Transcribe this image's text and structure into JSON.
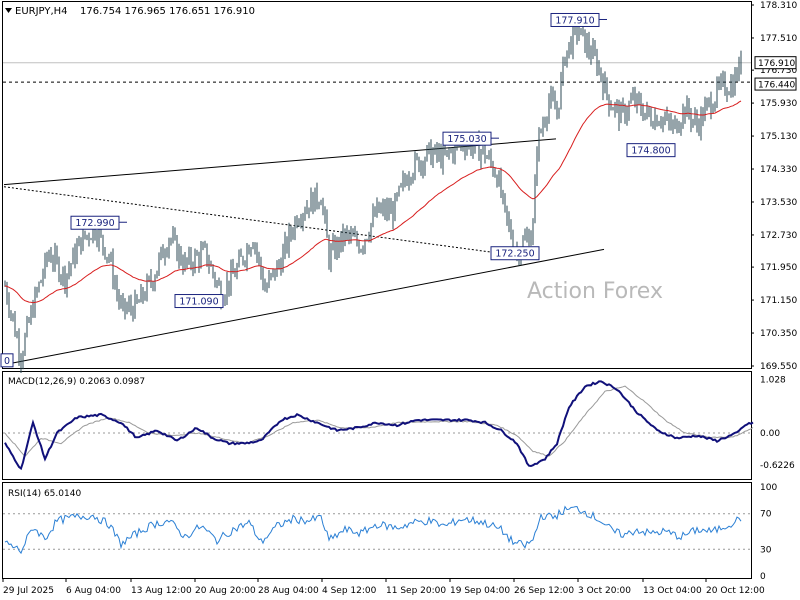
{
  "header": {
    "symbol": "EURJPY,H4",
    "ohlc": "176.754 176.965 176.651 176.910"
  },
  "watermark": "Action Forex",
  "chart_data": {
    "type": "candlestick",
    "y_axis": {
      "range": [
        169.55,
        178.31
      ],
      "ticks": [
        "178.310",
        "177.510",
        "176.730",
        "175.930",
        "175.130",
        "174.330",
        "173.530",
        "172.730",
        "171.950",
        "171.150",
        "170.350",
        "169.550"
      ]
    },
    "last_price": "176.910",
    "level_line": "176.440",
    "price_labels": [
      {
        "text": "177.910",
        "price": 177.91
      },
      {
        "text": "175.030",
        "price": 175.03
      },
      {
        "text": "172.990",
        "price": 172.99
      },
      {
        "text": "172.250",
        "price": 172.25
      },
      {
        "text": "171.090",
        "price": 171.09
      },
      {
        "text": "174.800",
        "price": 174.8
      },
      {
        "text": "0",
        "price": 169.7
      }
    ],
    "x_labels": [
      "29 Jul 2025",
      "6 Aug 04:00",
      "13 Aug 12:00",
      "20 Aug 20:00",
      "28 Aug 04:00",
      "4 Sep 12:00",
      "11 Sep 20:00",
      "19 Sep 04:00",
      "26 Sep 12:00",
      "3 Oct 20:00",
      "13 Oct 04:00",
      "20 Oct 12:00"
    ],
    "price_anchors": [
      [
        0,
        171.5
      ],
      [
        8,
        169.8
      ],
      [
        14,
        171.0
      ],
      [
        22,
        172.3
      ],
      [
        30,
        171.7
      ],
      [
        38,
        172.6
      ],
      [
        45,
        172.9
      ],
      [
        52,
        172.2
      ],
      [
        58,
        170.9
      ],
      [
        66,
        171.0
      ],
      [
        74,
        171.7
      ],
      [
        82,
        172.7
      ],
      [
        90,
        172.0
      ],
      [
        100,
        172.3
      ],
      [
        108,
        171.3
      ],
      [
        116,
        171.9
      ],
      [
        124,
        172.7
      ],
      [
        130,
        171.4
      ],
      [
        138,
        172.1
      ],
      [
        146,
        173.2
      ],
      [
        152,
        173.5
      ],
      [
        158,
        173.7
      ],
      [
        162,
        172.2
      ],
      [
        170,
        172.7
      ],
      [
        178,
        172.5
      ],
      [
        186,
        173.3
      ],
      [
        194,
        173.3
      ],
      [
        202,
        174.3
      ],
      [
        212,
        174.7
      ],
      [
        220,
        174.6
      ],
      [
        228,
        175.0
      ],
      [
        234,
        174.9
      ],
      [
        240,
        174.7
      ],
      [
        246,
        174.2
      ],
      [
        250,
        173.2
      ],
      [
        256,
        172.3
      ],
      [
        260,
        172.6
      ],
      [
        264,
        172.9
      ],
      [
        266,
        174.9
      ],
      [
        272,
        176.0
      ],
      [
        276,
        175.7
      ],
      [
        280,
        177.1
      ],
      [
        286,
        177.7
      ],
      [
        290,
        177.4
      ],
      [
        296,
        176.9
      ],
      [
        302,
        176.0
      ],
      [
        308,
        175.6
      ],
      [
        314,
        176.0
      ],
      [
        322,
        175.6
      ],
      [
        328,
        175.6
      ],
      [
        334,
        175.3
      ],
      [
        340,
        175.8
      ],
      [
        346,
        175.4
      ],
      [
        352,
        175.9
      ],
      [
        358,
        176.3
      ],
      [
        364,
        176.4
      ],
      [
        368,
        176.91
      ]
    ],
    "indicators": {
      "macd": {
        "label": "MACD(12,26,9) 0.2063 0.0987",
        "ticks": [
          "1.028",
          "0.00",
          "-0.6226"
        ],
        "range": [
          -0.85,
          1.1
        ],
        "macd_anchors": [
          [
            0,
            -0.2
          ],
          [
            8,
            -0.7
          ],
          [
            14,
            0.2
          ],
          [
            20,
            -0.5
          ],
          [
            26,
            0.0
          ],
          [
            36,
            0.3
          ],
          [
            48,
            0.35
          ],
          [
            58,
            0.2
          ],
          [
            66,
            -0.1
          ],
          [
            76,
            0.05
          ],
          [
            86,
            -0.15
          ],
          [
            96,
            0.1
          ],
          [
            104,
            -0.1
          ],
          [
            112,
            -0.2
          ],
          [
            120,
            -0.2
          ],
          [
            128,
            -0.15
          ],
          [
            138,
            0.25
          ],
          [
            146,
            0.35
          ],
          [
            156,
            0.2
          ],
          [
            166,
            0.05
          ],
          [
            176,
            0.1
          ],
          [
            186,
            0.2
          ],
          [
            196,
            0.15
          ],
          [
            206,
            0.25
          ],
          [
            220,
            0.25
          ],
          [
            232,
            0.25
          ],
          [
            240,
            0.2
          ],
          [
            248,
            0.05
          ],
          [
            256,
            -0.2
          ],
          [
            262,
            -0.65
          ],
          [
            270,
            -0.5
          ],
          [
            276,
            -0.2
          ],
          [
            282,
            0.5
          ],
          [
            290,
            0.9
          ],
          [
            298,
            1.0
          ],
          [
            306,
            0.85
          ],
          [
            316,
            0.4
          ],
          [
            326,
            0.05
          ],
          [
            336,
            -0.1
          ],
          [
            346,
            -0.05
          ],
          [
            356,
            -0.15
          ],
          [
            366,
            0.0
          ],
          [
            370,
            0.15
          ],
          [
            374,
            0.2
          ]
        ],
        "signal_anchors": [
          [
            0,
            0.0
          ],
          [
            10,
            -0.45
          ],
          [
            18,
            -0.1
          ],
          [
            28,
            -0.2
          ],
          [
            40,
            0.15
          ],
          [
            52,
            0.3
          ],
          [
            62,
            0.2
          ],
          [
            72,
            0.0
          ],
          [
            84,
            -0.05
          ],
          [
            96,
            0.0
          ],
          [
            108,
            -0.1
          ],
          [
            120,
            -0.2
          ],
          [
            132,
            -0.05
          ],
          [
            144,
            0.2
          ],
          [
            156,
            0.25
          ],
          [
            168,
            0.1
          ],
          [
            182,
            0.1
          ],
          [
            196,
            0.2
          ],
          [
            214,
            0.22
          ],
          [
            232,
            0.22
          ],
          [
            246,
            0.15
          ],
          [
            256,
            -0.05
          ],
          [
            264,
            -0.35
          ],
          [
            272,
            -0.45
          ],
          [
            280,
            -0.15
          ],
          [
            290,
            0.35
          ],
          [
            300,
            0.8
          ],
          [
            310,
            0.9
          ],
          [
            320,
            0.6
          ],
          [
            330,
            0.25
          ],
          [
            340,
            0.0
          ],
          [
            352,
            -0.08
          ],
          [
            364,
            -0.08
          ],
          [
            374,
            0.1
          ]
        ]
      },
      "rsi": {
        "label": "RSI(14) 65.0140",
        "ticks": [
          "100",
          "70",
          "30",
          "0"
        ],
        "range": [
          0,
          100
        ],
        "levels": [
          70,
          30
        ],
        "anchors": [
          [
            0,
            38
          ],
          [
            8,
            28
          ],
          [
            14,
            55
          ],
          [
            20,
            42
          ],
          [
            26,
            62
          ],
          [
            34,
            66
          ],
          [
            44,
            68
          ],
          [
            52,
            58
          ],
          [
            58,
            36
          ],
          [
            66,
            48
          ],
          [
            74,
            58
          ],
          [
            82,
            62
          ],
          [
            90,
            44
          ],
          [
            98,
            56
          ],
          [
            106,
            40
          ],
          [
            114,
            52
          ],
          [
            122,
            60
          ],
          [
            128,
            38
          ],
          [
            136,
            56
          ],
          [
            144,
            64
          ],
          [
            152,
            62
          ],
          [
            158,
            66
          ],
          [
            162,
            40
          ],
          [
            170,
            52
          ],
          [
            178,
            48
          ],
          [
            186,
            58
          ],
          [
            196,
            54
          ],
          [
            204,
            60
          ],
          [
            212,
            62
          ],
          [
            220,
            56
          ],
          [
            228,
            64
          ],
          [
            236,
            62
          ],
          [
            242,
            58
          ],
          [
            248,
            52
          ],
          [
            254,
            38
          ],
          [
            260,
            34
          ],
          [
            264,
            40
          ],
          [
            268,
            68
          ],
          [
            274,
            66
          ],
          [
            280,
            74
          ],
          [
            286,
            76
          ],
          [
            292,
            70
          ],
          [
            298,
            62
          ],
          [
            304,
            50
          ],
          [
            310,
            46
          ],
          [
            316,
            52
          ],
          [
            322,
            48
          ],
          [
            330,
            50
          ],
          [
            338,
            44
          ],
          [
            346,
            52
          ],
          [
            354,
            50
          ],
          [
            362,
            58
          ],
          [
            368,
            65
          ]
        ]
      }
    }
  }
}
